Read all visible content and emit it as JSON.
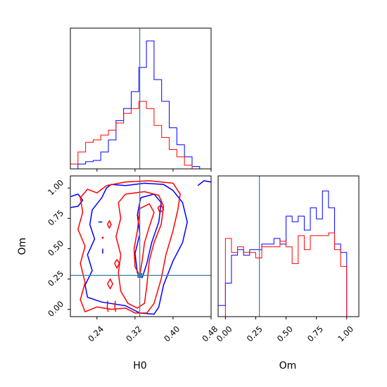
{
  "chart_data": {
    "type": "corner",
    "parameters": [
      "H0",
      "Om"
    ],
    "truth": {
      "H0": 0.33,
      "Om": 0.28
    },
    "colors": {
      "series_a": "#0000ff",
      "series_b": "#ff0000",
      "truth": "#3a7ca5",
      "frame": "#000000"
    },
    "xlabel": "H0",
    "ylabel": "Om",
    "xlabel_right": "Om",
    "h0_axis": {
      "range": [
        0.184,
        0.48
      ],
      "ticks": [
        0.24,
        0.32,
        0.4,
        0.48
      ],
      "tick_labels": [
        "0.24",
        "0.32",
        "0.40",
        "0.48"
      ]
    },
    "om_axis": {
      "range": [
        -0.06,
        1.1
      ],
      "ticks": [
        0.0,
        0.25,
        0.5,
        0.75,
        1.0
      ],
      "tick_labels": [
        "0.00",
        "0.25",
        "0.50",
        "0.75",
        "1.00"
      ]
    },
    "hist_h0": {
      "bin_edges": [
        0.184,
        0.2,
        0.216,
        0.232,
        0.248,
        0.264,
        0.28,
        0.296,
        0.312,
        0.328,
        0.344,
        0.36,
        0.376,
        0.392,
        0.408,
        0.424,
        0.44,
        0.456,
        0.472
      ],
      "series": [
        {
          "color": "blue",
          "counts": [
            0,
            4,
            6,
            7,
            14,
            24,
            40,
            50,
            64,
            84,
            106,
            74,
            56,
            34,
            20,
            10,
            2,
            0
          ]
        },
        {
          "color": "red",
          "counts": [
            4,
            14,
            22,
            24,
            28,
            32,
            38,
            46,
            50,
            56,
            50,
            36,
            26,
            16,
            10,
            3,
            0,
            0
          ]
        }
      ]
    },
    "hist_om": {
      "bin_edges": [
        -0.06,
        0.0,
        0.05,
        0.1,
        0.15,
        0.2,
        0.25,
        0.3,
        0.35,
        0.4,
        0.45,
        0.5,
        0.55,
        0.6,
        0.65,
        0.7,
        0.75,
        0.8,
        0.85,
        0.9,
        0.95,
        1.0,
        1.05,
        1.1
      ],
      "series": [
        {
          "color": "blue",
          "counts": [
            4,
            12,
            22,
            24,
            22,
            24,
            24,
            26,
            26,
            28,
            26,
            36,
            34,
            36,
            31,
            39,
            35,
            45,
            39,
            26,
            23,
            0,
            0
          ]
        },
        {
          "color": "red",
          "counts": [
            0,
            28,
            23,
            25,
            23,
            23,
            21,
            25,
            25,
            25,
            27,
            25,
            19,
            29,
            24,
            29,
            29,
            29,
            30,
            24,
            18,
            0,
            0
          ]
        }
      ]
    },
    "contours": [
      {
        "color": "blue",
        "points": [
          [
            0.3,
            1.02
          ],
          [
            0.34,
            1.04
          ],
          [
            0.38,
            1.03
          ],
          [
            0.4,
            0.98
          ],
          [
            0.42,
            0.88
          ],
          [
            0.43,
            0.72
          ],
          [
            0.42,
            0.55
          ],
          [
            0.4,
            0.4
          ],
          [
            0.38,
            0.2
          ],
          [
            0.37,
            0.02
          ],
          [
            0.36,
            -0.04
          ],
          [
            0.33,
            -0.03
          ],
          [
            0.3,
            0.03
          ],
          [
            0.25,
            0.06
          ],
          [
            0.22,
            0.1
          ],
          [
            0.215,
            0.2
          ],
          [
            0.23,
            0.32
          ],
          [
            0.22,
            0.45
          ],
          [
            0.235,
            0.58
          ],
          [
            0.225,
            0.7
          ],
          [
            0.23,
            0.82
          ],
          [
            0.25,
            0.92
          ],
          [
            0.26,
            1.0
          ],
          [
            0.27,
            1.03
          ],
          [
            0.3,
            1.02
          ]
        ]
      },
      {
        "color": "blue",
        "points": [
          [
            0.185,
            0.93
          ],
          [
            0.2,
            0.95
          ],
          [
            0.21,
            0.9
          ],
          [
            0.2,
            0.85
          ],
          [
            0.185,
            0.84
          ]
        ]
      },
      {
        "color": "blue",
        "points": [
          [
            0.452,
            1.02
          ],
          [
            0.465,
            1.06
          ],
          [
            0.48,
            1.05
          ]
        ]
      },
      {
        "color": "blue",
        "points": [
          [
            0.332,
            0.92
          ],
          [
            0.36,
            0.95
          ],
          [
            0.375,
            0.88
          ],
          [
            0.37,
            0.72
          ],
          [
            0.355,
            0.55
          ],
          [
            0.345,
            0.38
          ],
          [
            0.335,
            0.26
          ],
          [
            0.325,
            0.3
          ],
          [
            0.32,
            0.46
          ],
          [
            0.33,
            0.62
          ],
          [
            0.325,
            0.78
          ],
          [
            0.332,
            0.92
          ]
        ]
      },
      {
        "color": "red",
        "points": [
          [
            0.26,
            1.02
          ],
          [
            0.3,
            1.05
          ],
          [
            0.35,
            1.06
          ],
          [
            0.4,
            1.04
          ],
          [
            0.415,
            0.95
          ],
          [
            0.41,
            0.82
          ],
          [
            0.4,
            0.65
          ],
          [
            0.385,
            0.45
          ],
          [
            0.375,
            0.25
          ],
          [
            0.36,
            0.05
          ],
          [
            0.345,
            -0.03
          ],
          [
            0.32,
            -0.03
          ],
          [
            0.3,
            0.01
          ],
          [
            0.27,
            0.0
          ],
          [
            0.24,
            0.02
          ],
          [
            0.215,
            -0.02
          ],
          [
            0.205,
            0.08
          ],
          [
            0.215,
            0.22
          ],
          [
            0.205,
            0.38
          ],
          [
            0.215,
            0.52
          ],
          [
            0.2,
            0.66
          ],
          [
            0.21,
            0.8
          ],
          [
            0.205,
            0.92
          ],
          [
            0.22,
            0.99
          ],
          [
            0.24,
            0.96
          ],
          [
            0.26,
            1.02
          ]
        ]
      },
      {
        "color": "red",
        "points": [
          [
            0.3,
            0.95
          ],
          [
            0.34,
            0.97
          ],
          [
            0.37,
            0.94
          ],
          [
            0.38,
            0.85
          ],
          [
            0.375,
            0.7
          ],
          [
            0.36,
            0.55
          ],
          [
            0.35,
            0.4
          ],
          [
            0.345,
            0.2
          ],
          [
            0.34,
            0.05
          ],
          [
            0.325,
            0.01
          ],
          [
            0.305,
            0.05
          ],
          [
            0.29,
            0.15
          ],
          [
            0.285,
            0.3
          ],
          [
            0.29,
            0.45
          ],
          [
            0.28,
            0.6
          ],
          [
            0.29,
            0.75
          ],
          [
            0.285,
            0.88
          ],
          [
            0.3,
            0.95
          ]
        ]
      },
      {
        "color": "red",
        "points": [
          [
            0.33,
            0.83
          ],
          [
            0.35,
            0.87
          ],
          [
            0.36,
            0.8
          ],
          [
            0.35,
            0.68
          ],
          [
            0.34,
            0.55
          ],
          [
            0.335,
            0.4
          ],
          [
            0.33,
            0.28
          ],
          [
            0.32,
            0.35
          ],
          [
            0.318,
            0.5
          ],
          [
            0.325,
            0.65
          ],
          [
            0.33,
            0.83
          ]
        ]
      },
      {
        "color": "red",
        "points": [
          [
            0.368,
            0.84
          ],
          [
            0.375,
            0.86
          ],
          [
            0.38,
            0.82
          ],
          [
            0.372,
            0.8
          ],
          [
            0.368,
            0.84
          ]
        ]
      },
      {
        "color": "red",
        "points": [
          [
            0.277,
            0.38
          ],
          [
            0.282,
            0.41
          ],
          [
            0.287,
            0.38
          ],
          [
            0.282,
            0.34
          ],
          [
            0.277,
            0.38
          ]
        ]
      },
      {
        "color": "red",
        "points": [
          [
            0.262,
            0.21
          ],
          [
            0.268,
            0.25
          ],
          [
            0.273,
            0.21
          ],
          [
            0.268,
            0.17
          ],
          [
            0.262,
            0.21
          ]
        ]
      },
      {
        "color": "red",
        "points": [
          [
            0.262,
            0.7
          ],
          [
            0.266,
            0.73
          ],
          [
            0.27,
            0.7
          ],
          [
            0.266,
            0.67
          ],
          [
            0.262,
            0.7
          ]
        ]
      },
      {
        "color": "red",
        "points": [
          [
            0.2625,
            0.07
          ],
          [
            0.2615,
            0.02
          ],
          [
            0.2635,
            -0.02
          ]
        ]
      },
      {
        "color": "red",
        "points": [
          [
            0.2785,
            0.07
          ],
          [
            0.2775,
            0.02
          ],
          [
            0.2795,
            -0.02
          ]
        ]
      }
    ],
    "blue_marks": [
      {
        "x": [
          0.243,
          0.251
        ],
        "y": [
          0.72,
          0.72
        ]
      },
      {
        "x": [
          0.252,
          0.252
        ],
        "y": [
          0.5,
          0.46
        ]
      }
    ],
    "red_marks": [
      {
        "x": 0.252,
        "y": 0.59
      }
    ]
  }
}
